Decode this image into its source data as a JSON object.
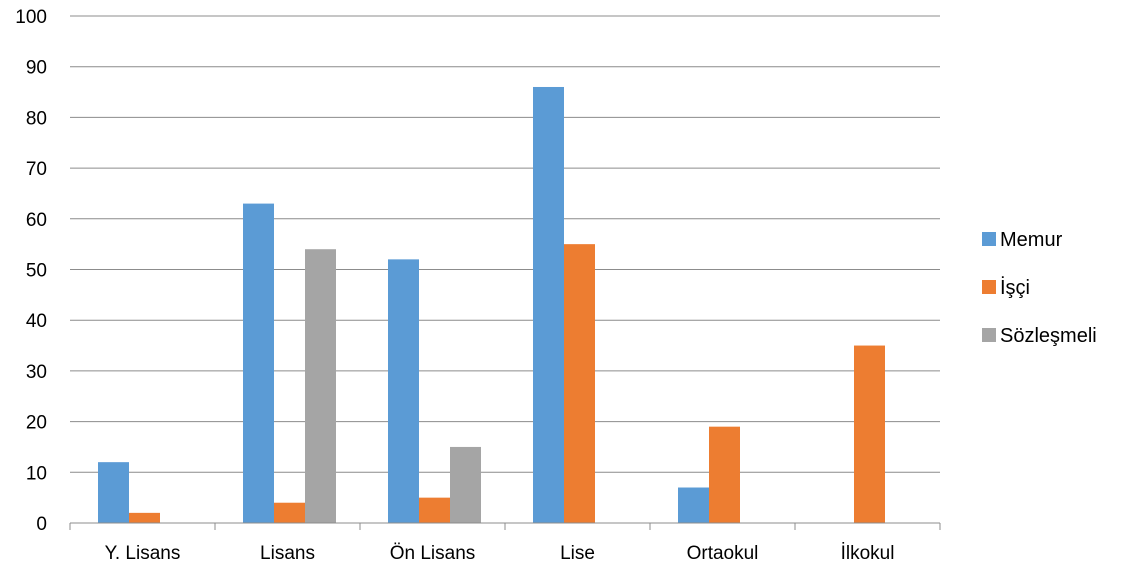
{
  "chart_data": {
    "type": "bar",
    "title": "",
    "xlabel": "",
    "ylabel": "",
    "categories": [
      "Y. Lisans",
      "Lisans",
      "Ön Lisans",
      "Lise",
      "Ortaokul",
      "İlkokul"
    ],
    "series": [
      {
        "name": "Memur",
        "color": "#5B9BD5",
        "values": [
          12,
          63,
          52,
          86,
          7,
          0
        ]
      },
      {
        "name": "İşçi",
        "color": "#ED7D31",
        "values": [
          2,
          4,
          5,
          55,
          19,
          35
        ]
      },
      {
        "name": "Sözleşmeli",
        "color": "#A5A5A5",
        "values": [
          0,
          54,
          15,
          0,
          0,
          0
        ]
      }
    ],
    "ylim": [
      0,
      100
    ],
    "yticks": [
      "0",
      "10",
      "20",
      "30",
      "40",
      "50",
      "60",
      "70",
      "80",
      "90",
      "100"
    ],
    "grid": true,
    "legend_position": "right",
    "gridline_color": "#8c8c8c",
    "axis_color": "#8c8c8c"
  }
}
